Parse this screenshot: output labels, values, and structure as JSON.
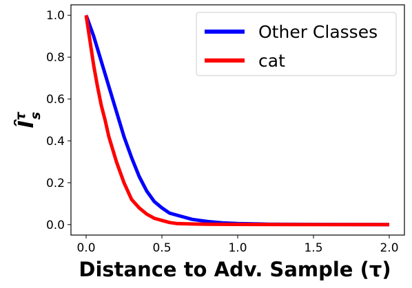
{
  "chart_data": {
    "type": "line",
    "title": "",
    "xlabel": "Distance to Adv. Sample (τ)",
    "ylabel": "Îτs",
    "xlim": [
      -0.1,
      2.1
    ],
    "ylim": [
      -0.05,
      1.05
    ],
    "x_ticks": [
      0.0,
      0.5,
      1.0,
      1.5,
      2.0
    ],
    "x_tick_labels": [
      "0.0",
      "0.5",
      "1.0",
      "1.5",
      "2.0"
    ],
    "y_ticks": [
      0.0,
      0.2,
      0.4,
      0.6,
      0.8,
      1.0
    ],
    "y_tick_labels": [
      "0.0",
      "0.2",
      "0.4",
      "0.6",
      "0.8",
      "1.0"
    ],
    "grid": false,
    "legend_position": "top-right",
    "series": [
      {
        "name": "Other Classes",
        "color": "#0000ff",
        "x": [
          0.0,
          0.05,
          0.1,
          0.15,
          0.2,
          0.25,
          0.3,
          0.35,
          0.4,
          0.45,
          0.5,
          0.55,
          0.6,
          0.65,
          0.7,
          0.75,
          0.8,
          0.9,
          1.0,
          1.2,
          1.5,
          2.0
        ],
        "y": [
          1.0,
          0.9,
          0.78,
          0.66,
          0.54,
          0.42,
          0.32,
          0.23,
          0.16,
          0.11,
          0.08,
          0.055,
          0.045,
          0.035,
          0.025,
          0.02,
          0.015,
          0.008,
          0.005,
          0.002,
          0.001,
          0.0
        ]
      },
      {
        "name": "cat",
        "color": "#ff0000",
        "x": [
          0.0,
          0.025,
          0.05,
          0.075,
          0.1,
          0.125,
          0.15,
          0.2,
          0.25,
          0.3,
          0.35,
          0.4,
          0.45,
          0.5,
          0.55,
          0.6,
          0.7,
          0.8,
          1.0,
          1.5,
          2.0
        ],
        "y": [
          1.0,
          0.88,
          0.76,
          0.66,
          0.57,
          0.5,
          0.42,
          0.3,
          0.2,
          0.12,
          0.08,
          0.05,
          0.03,
          0.02,
          0.01,
          0.005,
          0.003,
          0.002,
          0.001,
          0.0,
          0.0
        ]
      }
    ]
  }
}
